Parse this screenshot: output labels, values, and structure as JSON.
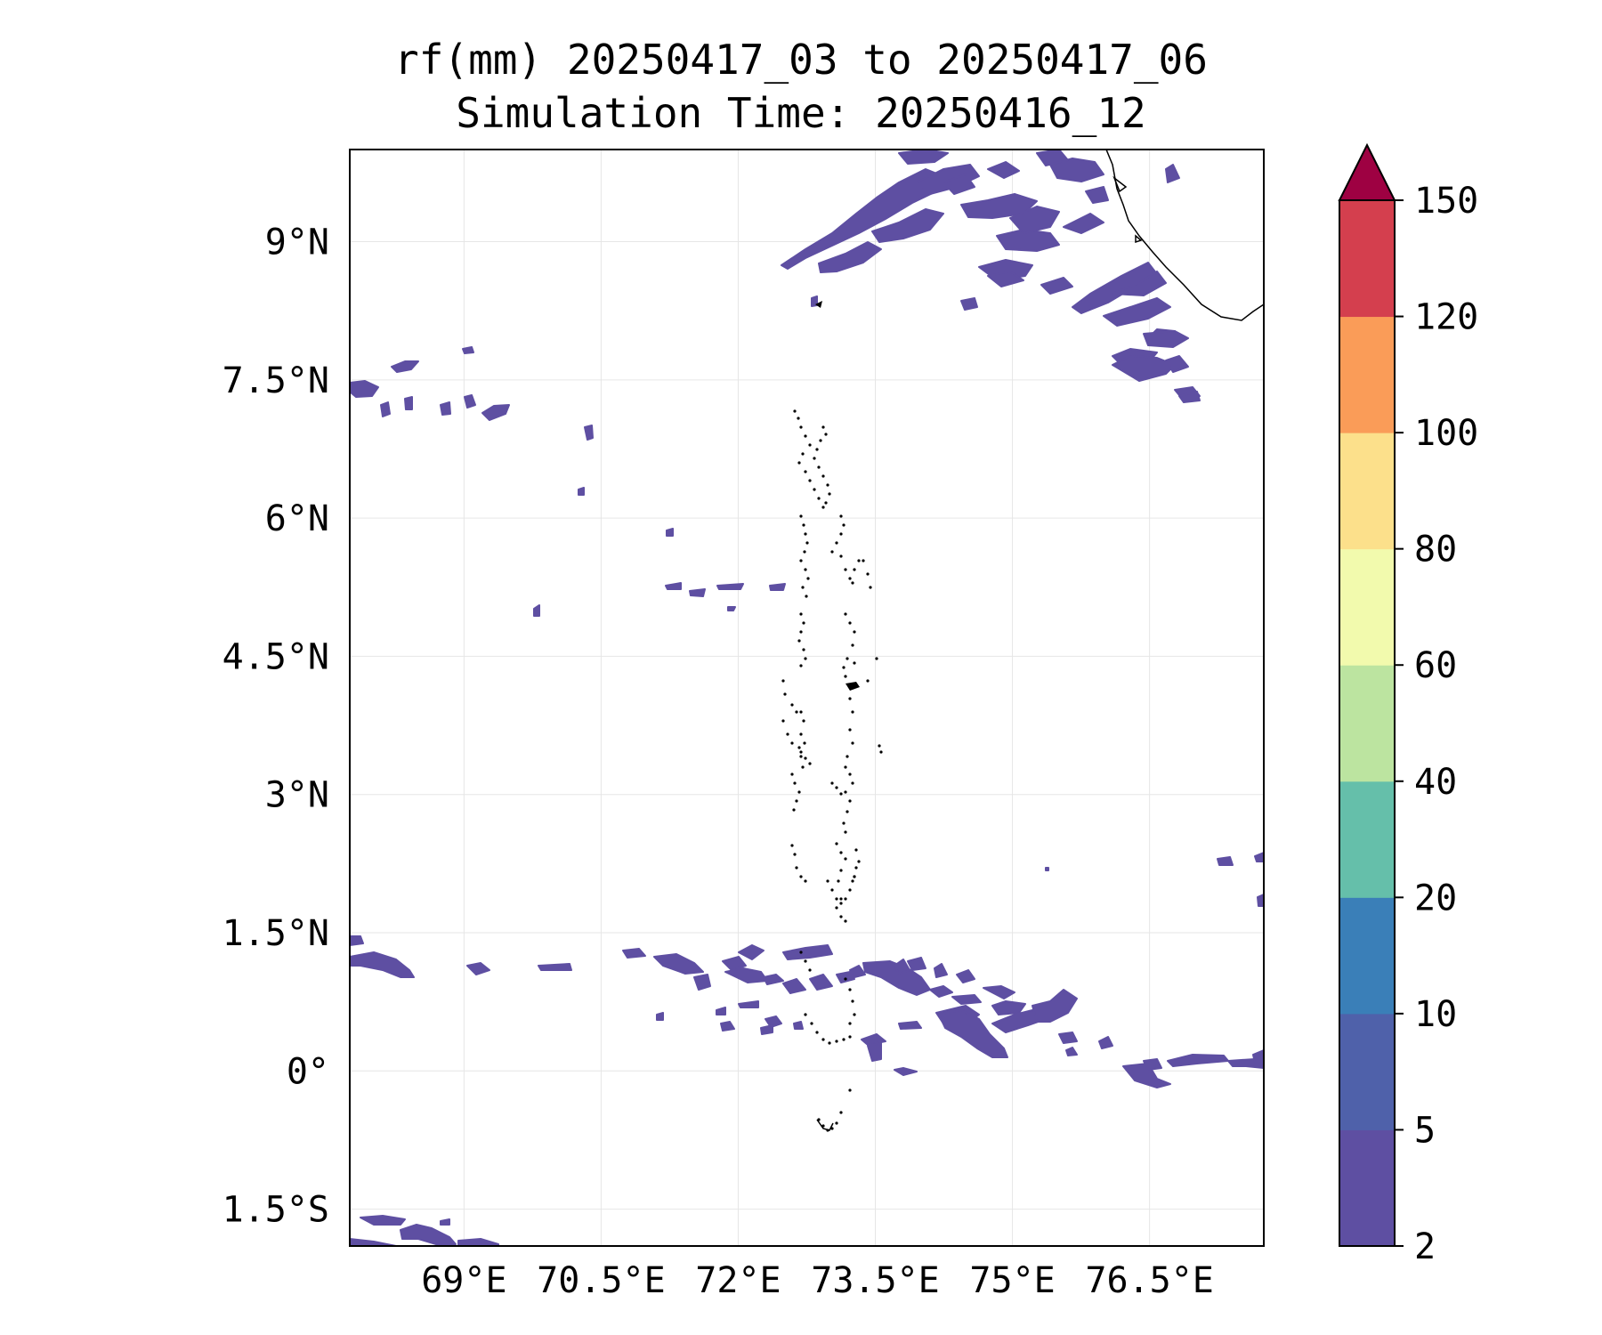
{
  "title_line1": "rf(mm) 20250417_03 to 20250417_06",
  "title_line2": "Simulation Time: 20250416_12",
  "map": {
    "lon_range": [
      67.75,
      77.75
    ],
    "lat_range": [
      -1.9,
      10.0
    ],
    "lon_ticks": [
      {
        "value": 69,
        "label": "69°E"
      },
      {
        "value": 70.5,
        "label": "70.5°E"
      },
      {
        "value": 72,
        "label": "72°E"
      },
      {
        "value": 73.5,
        "label": "73.5°E"
      },
      {
        "value": 75,
        "label": "75°E"
      },
      {
        "value": 76.5,
        "label": "76.5°E"
      }
    ],
    "lat_ticks": [
      {
        "value": 9,
        "label": "9°N"
      },
      {
        "value": 7.5,
        "label": "7.5°N"
      },
      {
        "value": 6,
        "label": "6°N"
      },
      {
        "value": 4.5,
        "label": "4.5°N"
      },
      {
        "value": 3,
        "label": "3°N"
      },
      {
        "value": 1.5,
        "label": "1.5°N"
      },
      {
        "value": 0,
        "label": "0°"
      },
      {
        "value": -1.5,
        "label": "1.5°S"
      }
    ],
    "gridlines": true,
    "rain_color": "#5e4fa2"
  },
  "colorbar": {
    "levels": [
      "2",
      "5",
      "10",
      "20",
      "40",
      "60",
      "80",
      "100",
      "120",
      "150"
    ],
    "colors": [
      "#5e4fa2",
      "#4f61aa",
      "#3a7fb8",
      "#65bfaa",
      "#bce4a0",
      "#f2faad",
      "#fce08b",
      "#fa9c58",
      "#d43f4e"
    ],
    "extend_color": "#9e0142",
    "extend": "max"
  }
}
